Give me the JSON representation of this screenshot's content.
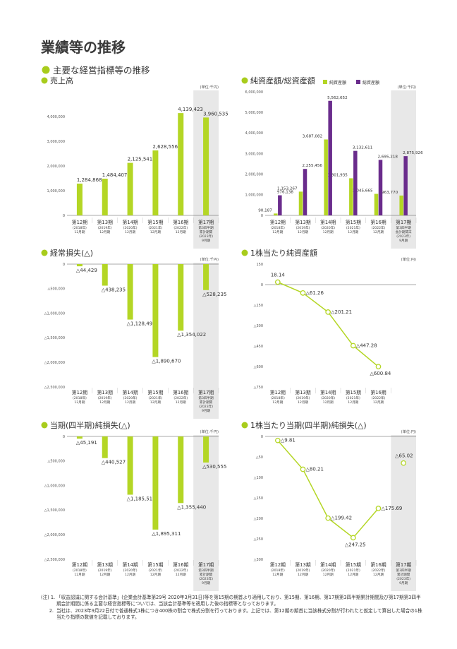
{
  "page": {
    "title": "業績等の推移",
    "section_heading": "主要な経営指標等の推移",
    "accent_color": "#a8cc1c",
    "bar_color": "#b4d625",
    "purple_color": "#6a2c8c",
    "shade_color": "#e8e8e8"
  },
  "footnotes": [
    {
      "head": "(注) 1.",
      "text": "「収益認識に関する会計基準」(企業会計基準第29号 2020年3月31日)等を第15期の期首より適用しており、第15期、第16期、第17期第3四半期累計期間及び第17期第3四半期会計期間に係る主要な経営指標等については、当該会計基準等を適用した後の指標等となっております。"
    },
    {
      "head": "2.",
      "text": "当社は、2023年9月22日付で普通株式1株につき400株の割合で株式分割を行っております。上記では、第12期の期首に当該株式分割が行われたと仮定して算出した場合の1株当たり指標の数値を記載しております。"
    }
  ],
  "chart_data": [
    {
      "id": "sales",
      "type": "bar",
      "title": "売上高",
      "unit_label": "(単位:千円)",
      "ylim": [
        0,
        5000000
      ],
      "y_ticks": [
        0,
        1000000,
        2000000,
        3000000,
        4000000
      ],
      "y_tick_labels": [
        "0",
        "1,000,000",
        "2,000,000",
        "3,000,000",
        "4,000,000"
      ],
      "categories": [
        {
          "period": "第12期",
          "sub": [
            "(2018年)",
            "12月期"
          ]
        },
        {
          "period": "第13期",
          "sub": [
            "(2019年)",
            "12月期"
          ]
        },
        {
          "period": "第14期",
          "sub": [
            "(2020年)",
            "12月期"
          ]
        },
        {
          "period": "第15期",
          "sub": [
            "(2021年)",
            "12月期"
          ]
        },
        {
          "period": "第16期",
          "sub": [
            "(2022年)",
            "12月期"
          ]
        },
        {
          "period": "第17期",
          "sub": [
            "第3四半期",
            "累計期間",
            "(2023年)",
            "9月期"
          ]
        }
      ],
      "values": [
        1284868,
        1484407,
        2125541,
        2628556,
        4139423,
        3960535
      ],
      "value_labels": [
        "1,284,868",
        "1,484,407",
        "2,125,541",
        "2,628,556",
        "4,139,423",
        "3,960,535"
      ],
      "shaded_last": true
    },
    {
      "id": "assets",
      "type": "bar",
      "title": "純資産額/総資産額",
      "unit_label": "(単位:千円)",
      "ylim": [
        0,
        6000000
      ],
      "y_ticks": [
        0,
        1000000,
        2000000,
        3000000,
        4000000,
        5000000,
        6000000
      ],
      "y_tick_labels": [
        "0",
        "1,000,000",
        "2,000,000",
        "3,000,000",
        "4,000,000",
        "5,000,000",
        "6,000,000"
      ],
      "legend": [
        "純資産額",
        "総資産額"
      ],
      "categories": [
        {
          "period": "第12期",
          "sub": [
            "(2018年)",
            "12月期"
          ]
        },
        {
          "period": "第13期",
          "sub": [
            "(2019年)",
            "12月期"
          ]
        },
        {
          "period": "第14期",
          "sub": [
            "(2020年)",
            "12月期"
          ]
        },
        {
          "period": "第15期",
          "sub": [
            "(2021年)",
            "12月期"
          ]
        },
        {
          "period": "第16期",
          "sub": [
            "(2022年)",
            "12月期"
          ]
        },
        {
          "period": "第17期",
          "sub": [
            "第3四半期",
            "会計期間末",
            "(2023年)",
            "9月期"
          ]
        }
      ],
      "series": [
        {
          "name": "純資産額",
          "values": [
            90187,
            1153267,
            3687082,
            1801935,
            1045665,
            963770
          ],
          "labels": [
            "90,187",
            "1,153,267",
            "3,687,082",
            "1,801,935",
            "1,045,665",
            "963,770"
          ]
        },
        {
          "name": "総資産額",
          "values": [
            976138,
            2255456,
            5562652,
            3132611,
            2695218,
            2875926
          ],
          "labels": [
            "976,138",
            "2,255,456",
            "5,562,652",
            "3,132,611",
            "2,695,218",
            "2,875,926"
          ]
        }
      ],
      "shaded_last": true
    },
    {
      "id": "ordinary-loss",
      "type": "bar",
      "title": "経常損失(△)",
      "unit_label": "(単位:千円)",
      "ylim": [
        -2500000,
        0
      ],
      "y_ticks": [
        0,
        -500000,
        -1000000,
        -1500000,
        -2000000,
        -2500000
      ],
      "y_tick_labels": [
        "0",
        "△500,000",
        "△1,000,000",
        "△1,500,000",
        "△2,000,000",
        "△2,500,000"
      ],
      "categories": [
        {
          "period": "第12期",
          "sub": [
            "(2018年)",
            "12月期"
          ]
        },
        {
          "period": "第13期",
          "sub": [
            "(2019年)",
            "12月期"
          ]
        },
        {
          "period": "第14期",
          "sub": [
            "(2020年)",
            "12月期"
          ]
        },
        {
          "period": "第15期",
          "sub": [
            "(2021年)",
            "12月期"
          ]
        },
        {
          "period": "第16期",
          "sub": [
            "(2022年)",
            "12月期"
          ]
        },
        {
          "period": "第17期",
          "sub": [
            "第3四半期",
            "累計期間",
            "(2023年)",
            "9月期"
          ]
        }
      ],
      "values": [
        -44429,
        -438235,
        -1128495,
        -1890670,
        -1354022,
        -528235
      ],
      "value_labels": [
        "△44,429",
        "△438,235",
        "△1,128,495",
        "△1,890,670",
        "△1,354,022",
        "△528,235"
      ],
      "shaded_last": true
    },
    {
      "id": "bps",
      "type": "line",
      "title": "1株当たり純資産額",
      "unit_label": "(単位:円)",
      "ylim": [
        -750,
        150
      ],
      "y_ticks": [
        150,
        0,
        -150,
        -300,
        -450,
        -600,
        -750
      ],
      "y_tick_labels": [
        "150",
        "0",
        "△150",
        "△300",
        "△450",
        "△600",
        "△750"
      ],
      "categories": [
        {
          "period": "第12期",
          "sub": [
            "(2018年)",
            "12月期"
          ]
        },
        {
          "period": "第13期",
          "sub": [
            "(2019年)",
            "12月期"
          ]
        },
        {
          "period": "第14期",
          "sub": [
            "(2020年)",
            "12月期"
          ]
        },
        {
          "period": "第15期",
          "sub": [
            "(2021年)",
            "12月期"
          ]
        },
        {
          "period": "第16期",
          "sub": [
            "(2022年)",
            "12月期"
          ]
        }
      ],
      "values": [
        18.14,
        -61.26,
        -201.21,
        -447.28,
        -600.84
      ],
      "value_labels": [
        "18.14",
        "△61.26",
        "△201.21",
        "△447.28",
        "△600.84"
      ],
      "shaded_last": false
    },
    {
      "id": "net-loss",
      "type": "bar",
      "title": "当期(四半期)純損失(△)",
      "unit_label": "(単位:千円)",
      "ylim": [
        -2500000,
        0
      ],
      "y_ticks": [
        0,
        -500000,
        -1000000,
        -1500000,
        -2000000,
        -2500000
      ],
      "y_tick_labels": [
        "0",
        "△500,000",
        "△1,000,000",
        "△1,500,000",
        "△2,000,000",
        "△2,500,000"
      ],
      "categories": [
        {
          "period": "第12期",
          "sub": [
            "(2018年)",
            "12月期"
          ]
        },
        {
          "period": "第13期",
          "sub": [
            "(2019年)",
            "12月期"
          ]
        },
        {
          "period": "第14期",
          "sub": [
            "(2020年)",
            "12月期"
          ]
        },
        {
          "period": "第15期",
          "sub": [
            "(2021年)",
            "12月期"
          ]
        },
        {
          "period": "第16期",
          "sub": [
            "(2022年)",
            "12月期"
          ]
        },
        {
          "period": "第17期",
          "sub": [
            "第3四半期",
            "累計期間",
            "(2023年)",
            "9月期"
          ]
        }
      ],
      "values": [
        -45191,
        -440527,
        -1185519,
        -1895311,
        -1355440,
        -530555
      ],
      "value_labels": [
        "△45,191",
        "△440,527",
        "△1,185,519",
        "△1,895,311",
        "△1,355,440",
        "△530,555"
      ],
      "shaded_last": true
    },
    {
      "id": "eps",
      "type": "line",
      "title": "1株当たり当期(四半期)純損失(△)",
      "unit_label": "(単位:円)",
      "ylim": [
        -300,
        0
      ],
      "y_ticks": [
        0,
        -50,
        -100,
        -150,
        -200,
        -250,
        -300
      ],
      "y_tick_labels": [
        "0",
        "△50",
        "△100",
        "△150",
        "△200",
        "△250",
        "△300"
      ],
      "categories": [
        {
          "period": "第12期",
          "sub": [
            "(2018年)",
            "12月期"
          ]
        },
        {
          "period": "第13期",
          "sub": [
            "(2019年)",
            "12月期"
          ]
        },
        {
          "period": "第14期",
          "sub": [
            "(2020年)",
            "12月期"
          ]
        },
        {
          "period": "第15期",
          "sub": [
            "(2021年)",
            "12月期"
          ]
        },
        {
          "period": "第16期",
          "sub": [
            "(2022年)",
            "12月期"
          ]
        },
        {
          "period": "第17期",
          "sub": [
            "第3四半期",
            "累計期間",
            "(2023年)",
            "9月期"
          ]
        }
      ],
      "values": [
        -9.81,
        -80.21,
        -199.42,
        -247.25,
        -175.69,
        -65.02
      ],
      "value_labels": [
        "△9.81",
        "△80.21",
        "△199.42",
        "△247.25",
        "△175.69",
        "△65.02"
      ],
      "line_points": 5,
      "shaded_last": true
    }
  ]
}
